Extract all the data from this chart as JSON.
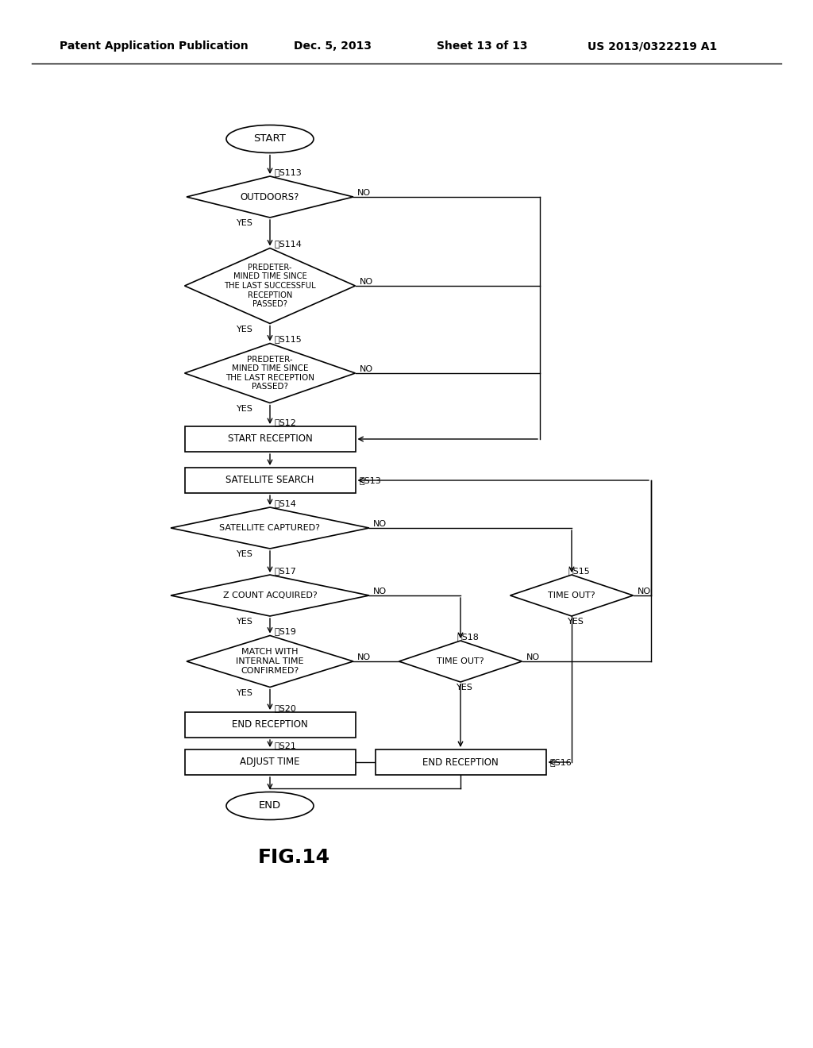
{
  "bg_color": "#ffffff",
  "header_text": "Patent Application Publication",
  "header_date": "Dec. 5, 2013",
  "header_sheet": "Sheet 13 of 13",
  "header_patent": "US 2013/0322219 A1",
  "fig_label": "FIG.14",
  "line_color": "#000000",
  "text_color": "#000000",
  "font_size": 8.0,
  "label_font_size": 8.0
}
